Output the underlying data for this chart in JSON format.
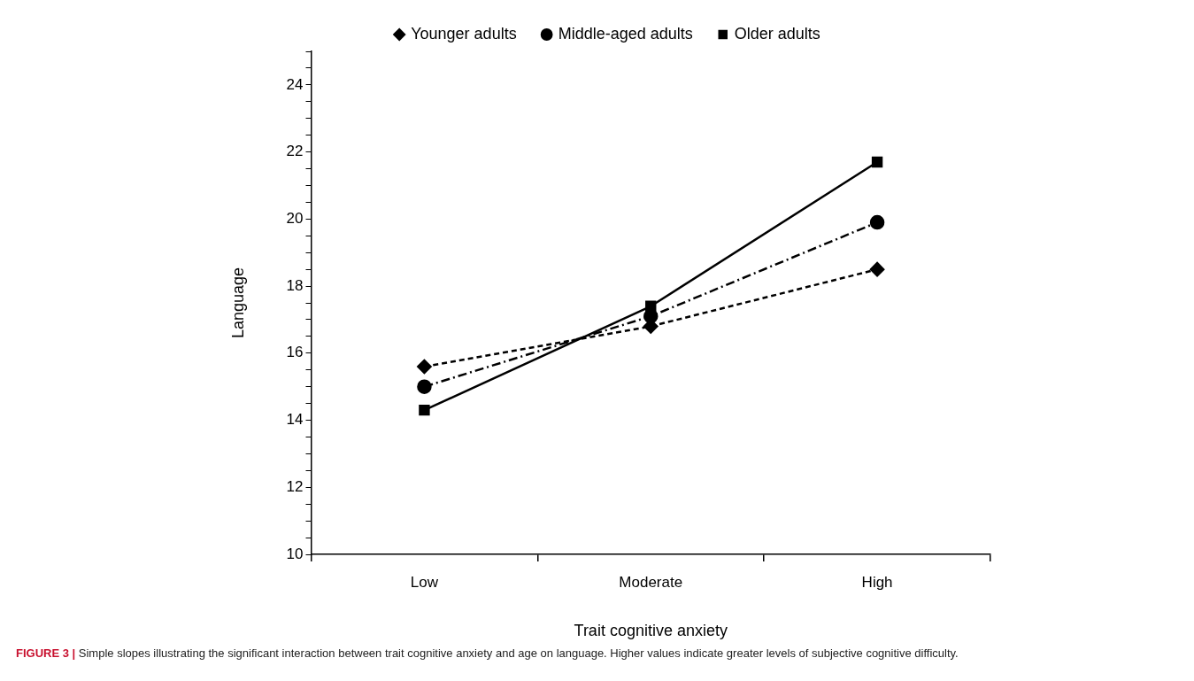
{
  "chart_data": {
    "type": "line",
    "xlabel": "Trait cognitive anxiety",
    "ylabel": "Language",
    "categories": [
      "Low",
      "Moderate",
      "High"
    ],
    "series": [
      {
        "name": "Younger adults",
        "color": "#000000",
        "values": [
          15.6,
          16.8,
          18.5
        ],
        "marker": "diamond",
        "line_style": "dashed"
      },
      {
        "name": "Middle-aged adults",
        "color": "#000000",
        "values": [
          15.0,
          17.1,
          19.9
        ],
        "marker": "circle",
        "line_style": "dashdot"
      },
      {
        "name": "Older adults",
        "color": "#000000",
        "values": [
          14.3,
          17.4,
          21.7
        ],
        "marker": "square",
        "line_style": "solid"
      }
    ],
    "ylim": [
      10,
      25
    ],
    "yticks": [
      10,
      {
        "value": 10.5,
        "label": null
      },
      {
        "value": 11,
        "label": null
      },
      {
        "value": 11.5,
        "label": null
      },
      12,
      {
        "value": 12.5,
        "label": null
      },
      {
        "value": 13,
        "label": null
      },
      {
        "value": 13.5,
        "label": null
      },
      14,
      {
        "value": 14.5,
        "label": null
      },
      {
        "value": 15,
        "label": null
      },
      {
        "value": 15.5,
        "label": null
      },
      16,
      {
        "value": 16.5,
        "label": null
      },
      {
        "value": 17,
        "label": null
      },
      {
        "value": 17.5,
        "label": null
      },
      18,
      {
        "value": 18.5,
        "label": null
      },
      {
        "value": 19,
        "label": null
      },
      {
        "value": 19.5,
        "label": null
      },
      20,
      {
        "value": 20.5,
        "label": null
      },
      {
        "value": 21,
        "label": null
      },
      {
        "value": 21.5,
        "label": null
      },
      22,
      {
        "value": 22.5,
        "label": null
      },
      {
        "value": 23,
        "label": null
      },
      {
        "value": 23.5,
        "label": null
      },
      24,
      {
        "value": 24.5,
        "label": null
      },
      {
        "value": 25,
        "label": null
      }
    ],
    "grid": false,
    "legend": "top",
    "annotations": [
      "FIGURE 3 | Simple slopes illustrating the significant interaction between trait cognitive anxiety and age on language. Higher values indicate greater levels of subjective cognitive difficulty."
    ]
  }
}
